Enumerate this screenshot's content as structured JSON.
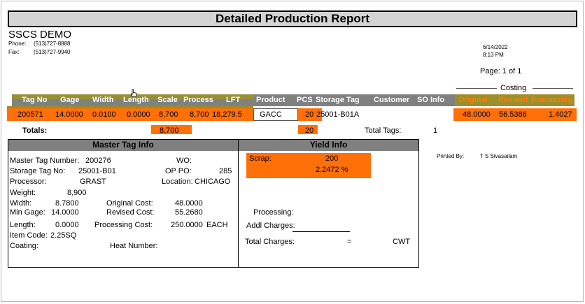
{
  "report": {
    "title": "Detailed Production Report",
    "company": "SSCS DEMO",
    "phone_label": "Phone:",
    "phone": "(513)727-8888",
    "fax_label": "Fax:",
    "fax": "(513)727-9940",
    "date": "6/14/2022",
    "time": "8:13 PM",
    "page": "Page: 1 of 1",
    "costing_label": "Costing"
  },
  "table": {
    "headers": [
      "Tag No",
      "Gage",
      "Width",
      "Length",
      "Scale",
      "Process",
      "LFT",
      "Product",
      "PCS",
      "Storage Tag",
      "Customer",
      "SO Info",
      "Original",
      "Revised",
      "Processing"
    ],
    "row": {
      "tag_no": "200571",
      "gage": "14.0000",
      "width": "0.0100",
      "length": "0.0000",
      "scale": "8,700",
      "process": "8,700",
      "lft": "18,279.5",
      "product": "GACC",
      "pcs": "20",
      "storage_tag": "25001-B01A",
      "original": "48.0000",
      "revised": "56.5386",
      "processing": "1.4027"
    },
    "totals": {
      "label": "Totals:",
      "scale": "8,700",
      "pcs": "20",
      "total_tags_label": "Total Tags:",
      "total_tags": "1"
    }
  },
  "master": {
    "title": "Master Tag Info",
    "master_tag_label": "Master Tag Number:",
    "master_tag": "200276",
    "wo_label": "WO:",
    "storage_label": "Storage Tag No:",
    "storage": "25001-B01",
    "op_po_label": "OP PO:",
    "op_po": "285",
    "processor_label": "Processor:",
    "processor": "GRAST",
    "location_label": "Location:",
    "location": "CHICAGO",
    "weight_label": "Weight:",
    "weight": "8,900",
    "width_label": "Width:",
    "width": "8.7800",
    "orig_cost_label": "Original Cost:",
    "orig_cost": "48.0000",
    "min_gage_label": "Min Gage:",
    "min_gage": "14.0000",
    "rev_cost_label": "Revised Cost:",
    "rev_cost": "55.2680",
    "length_label": "Length:",
    "length": "0.0000",
    "proc_cost_label": "Processing Cost:",
    "proc_cost": "250.0000",
    "proc_cost_unit": "EACH",
    "item_code_label": "Item Code:",
    "item_code": "2.25SQ",
    "coating_label": "Coating:",
    "heat_label": "Heat Number:"
  },
  "yield": {
    "title": "Yield Info",
    "scrap_label": "Scrap:",
    "scrap": "200",
    "scrap_pct": "2.2472 %",
    "processing_label": "Processing:",
    "addl_label": "Addl Charges:",
    "total_label": "Total Charges:",
    "equals": "=",
    "unit": "CWT"
  },
  "printed": {
    "label": "Printed By:",
    "name": "T S Sivasailam"
  },
  "colors": {
    "highlight": "#ff7009",
    "header_gray": "#808080",
    "olive": "#9a8f2a",
    "title_gray": "#d4d4d4"
  }
}
